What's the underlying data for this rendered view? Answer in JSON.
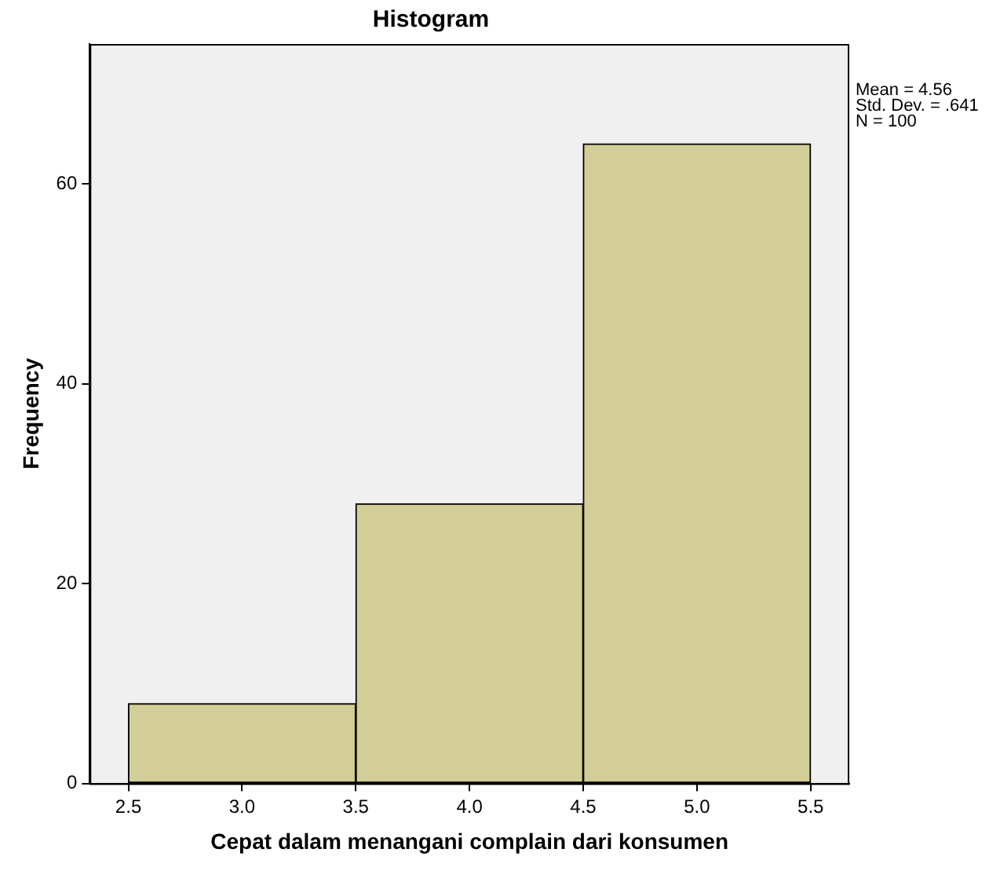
{
  "chart_data": {
    "type": "histogram",
    "title": "Histogram",
    "xlabel": "Cepat dalam menangani complain dari konsumen",
    "ylabel": "Frequency",
    "bins": [
      2.5,
      3.5,
      4.5,
      5.5
    ],
    "values": [
      8,
      28,
      64
    ],
    "color": "#d3ce97",
    "xlim": [
      2.33,
      5.67
    ],
    "xticks": [
      {
        "value": 2.5,
        "label": "2.5"
      },
      {
        "value": 3,
        "label": "3.0"
      },
      {
        "value": 3.5,
        "label": "3.5"
      },
      {
        "value": 4,
        "label": "4.0"
      },
      {
        "value": 4.5,
        "label": "4.5"
      },
      {
        "value": 5,
        "label": "5.0"
      },
      {
        "value": 5.5,
        "label": "5.5"
      }
    ],
    "ylim": [
      0,
      74
    ],
    "yticks": [
      0,
      20,
      40,
      60
    ],
    "grid": false,
    "legend": false,
    "annotations": [
      "Mean = 4.56",
      "Std. Dev. = .641",
      "N = 100"
    ]
  }
}
